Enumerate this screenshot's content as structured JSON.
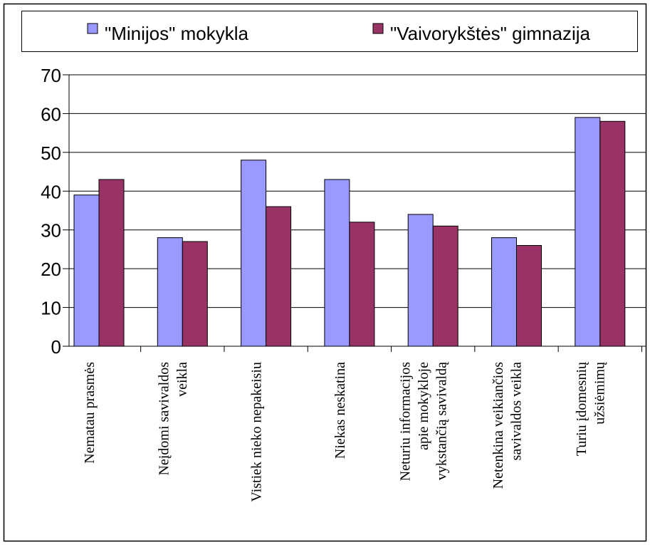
{
  "chart_data": {
    "type": "bar",
    "categories": [
      [
        "Nematau prasmės"
      ],
      [
        "Neįdomi savivaldos",
        "veikla"
      ],
      [
        "Vistiek nieko nepakeisiu"
      ],
      [
        "Niekas neskatina"
      ],
      [
        "Neturiu informacijos",
        "apie mokykloje",
        "vykstančią savivaldą"
      ],
      [
        "Netenkina veikiančios",
        "savivaldos veikla"
      ],
      [
        "Turiu įdomesnių",
        "užsiėmimų"
      ]
    ],
    "series": [
      {
        "name": "\"Minijos\" mokykla",
        "color": "#9999ff",
        "values": [
          39,
          28,
          48,
          43,
          34,
          28,
          59
        ]
      },
      {
        "name": "\"Vaivorykštės\" gimnazija",
        "color": "#993366",
        "values": [
          43,
          27,
          36,
          32,
          31,
          26,
          58
        ]
      }
    ],
    "ylim": [
      0,
      70
    ],
    "yticks": [
      0,
      10,
      20,
      30,
      40,
      50,
      60,
      70
    ],
    "grid": true,
    "legend": "top"
  }
}
